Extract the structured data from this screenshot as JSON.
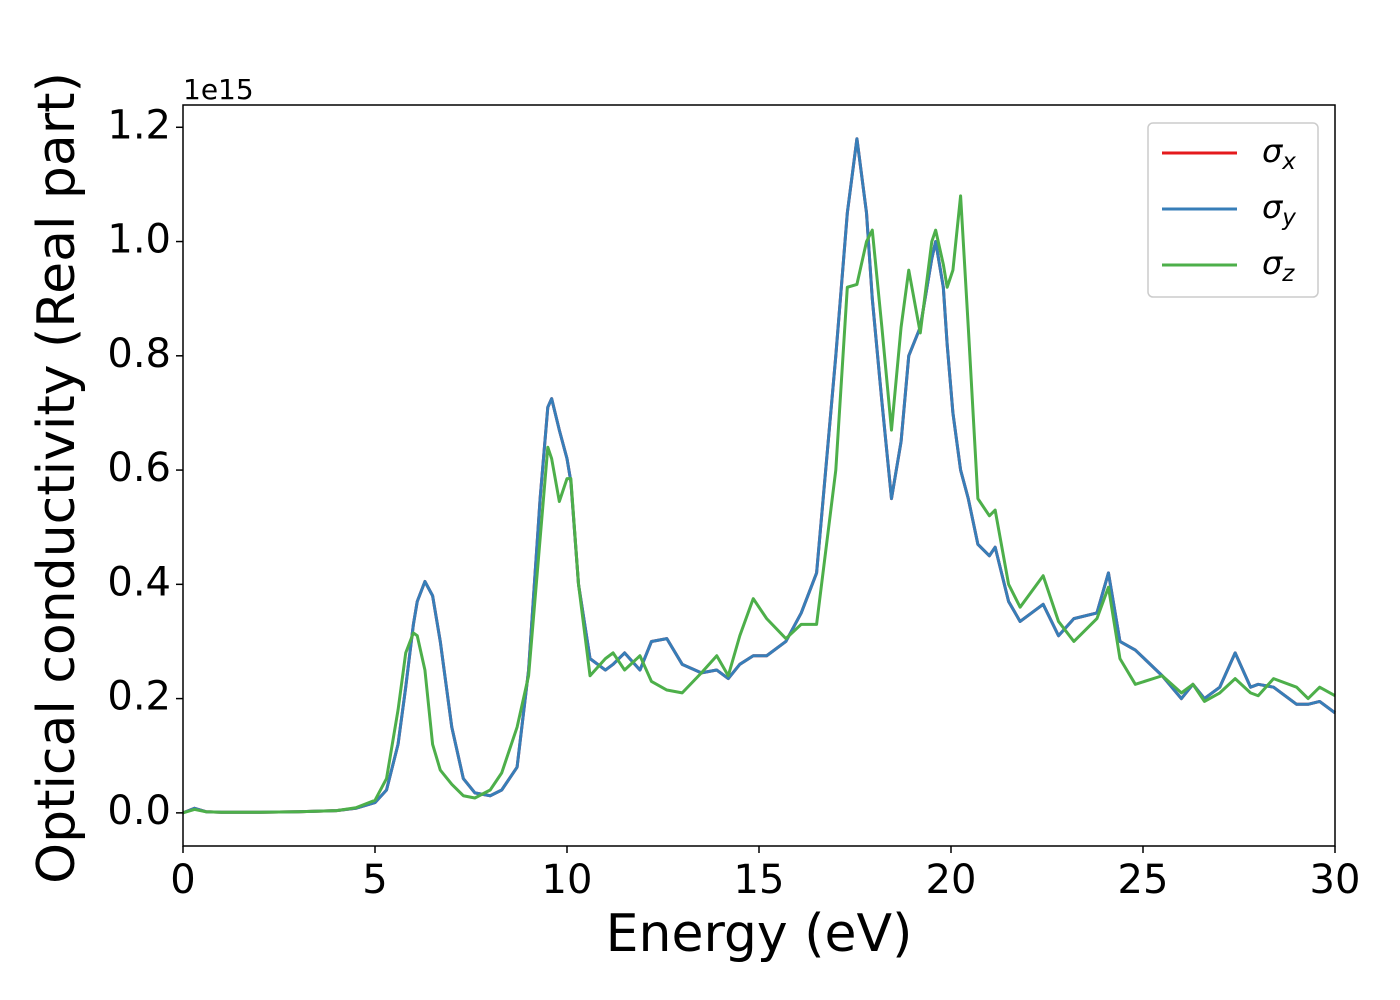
{
  "chart_data": {
    "type": "line",
    "xlabel": "Energy (eV)",
    "ylabel": "Optical conductivity (Real part)",
    "offset_label": "1e15",
    "legend": "upper right",
    "xlim": [
      0,
      30
    ],
    "xticks": [
      0,
      5,
      10,
      15,
      20,
      25,
      30
    ],
    "ylim": [
      -0.058,
      1.239
    ],
    "yticks": [
      {
        "value": 0,
        "label": "0.0"
      },
      0.2,
      0.4,
      0.6,
      0.8,
      {
        "value": 1,
        "label": "1.0"
      },
      1.2
    ],
    "x": [
      0,
      0.3,
      0.6,
      1,
      2,
      3,
      4,
      4.5,
      5,
      5.3,
      5.6,
      5.8,
      6.0,
      6.1,
      6.3,
      6.5,
      6.7,
      7.0,
      7.3,
      7.6,
      8.0,
      8.3,
      8.7,
      9.0,
      9.3,
      9.5,
      9.6,
      9.8,
      10.0,
      10.1,
      10.3,
      10.6,
      11.0,
      11.2,
      11.5,
      11.9,
      12.2,
      12.6,
      13.0,
      13.5,
      13.9,
      14.2,
      14.5,
      14.85,
      15.2,
      15.7,
      16.1,
      16.5,
      17.0,
      17.3,
      17.55,
      17.8,
      17.95,
      18.2,
      18.45,
      18.7,
      18.9,
      19.2,
      19.5,
      19.6,
      19.8,
      19.9,
      20.05,
      20.25,
      20.45,
      20.7,
      21.0,
      21.15,
      21.5,
      21.8,
      22.4,
      22.8,
      23.2,
      23.8,
      24.1,
      24.4,
      24.8,
      25.5,
      26.0,
      26.3,
      26.6,
      27.0,
      27.4,
      27.8,
      28.0,
      28.4,
      29.0,
      29.3,
      29.6,
      30.0
    ],
    "series": [
      {
        "name": "σx",
        "color": "#e41a1c",
        "values": [
          0.0,
          0.008,
          0.002,
          0.001,
          0.001,
          0.002,
          0.004,
          0.008,
          0.018,
          0.04,
          0.12,
          0.22,
          0.33,
          0.37,
          0.405,
          0.38,
          0.3,
          0.15,
          0.06,
          0.035,
          0.03,
          0.04,
          0.08,
          0.25,
          0.55,
          0.71,
          0.725,
          0.67,
          0.62,
          0.58,
          0.4,
          0.27,
          0.25,
          0.26,
          0.28,
          0.25,
          0.3,
          0.305,
          0.26,
          0.245,
          0.25,
          0.235,
          0.26,
          0.275,
          0.275,
          0.3,
          0.35,
          0.42,
          0.8,
          1.05,
          1.18,
          1.05,
          0.9,
          0.72,
          0.55,
          0.65,
          0.8,
          0.85,
          0.97,
          1.0,
          0.92,
          0.82,
          0.7,
          0.6,
          0.55,
          0.47,
          0.45,
          0.465,
          0.37,
          0.335,
          0.365,
          0.31,
          0.34,
          0.35,
          0.42,
          0.3,
          0.285,
          0.24,
          0.2,
          0.225,
          0.2,
          0.22,
          0.28,
          0.22,
          0.225,
          0.22,
          0.19,
          0.19,
          0.195,
          0.175
        ]
      },
      {
        "name": "σy",
        "color": "#377eb8",
        "values": [
          0.0,
          0.008,
          0.002,
          0.001,
          0.001,
          0.002,
          0.004,
          0.008,
          0.018,
          0.04,
          0.12,
          0.22,
          0.33,
          0.37,
          0.405,
          0.38,
          0.3,
          0.15,
          0.06,
          0.035,
          0.03,
          0.04,
          0.08,
          0.25,
          0.55,
          0.71,
          0.725,
          0.67,
          0.62,
          0.58,
          0.4,
          0.27,
          0.25,
          0.26,
          0.28,
          0.25,
          0.3,
          0.305,
          0.26,
          0.245,
          0.25,
          0.235,
          0.26,
          0.275,
          0.275,
          0.3,
          0.35,
          0.42,
          0.8,
          1.05,
          1.18,
          1.05,
          0.9,
          0.72,
          0.55,
          0.65,
          0.8,
          0.85,
          0.97,
          1.0,
          0.92,
          0.82,
          0.7,
          0.6,
          0.55,
          0.47,
          0.45,
          0.465,
          0.37,
          0.335,
          0.365,
          0.31,
          0.34,
          0.35,
          0.42,
          0.3,
          0.285,
          0.24,
          0.2,
          0.225,
          0.2,
          0.22,
          0.28,
          0.22,
          0.225,
          0.22,
          0.19,
          0.19,
          0.195,
          0.175
        ]
      },
      {
        "name": "σz",
        "color": "#4daf4a",
        "values": [
          0.0,
          0.006,
          0.002,
          0.001,
          0.001,
          0.002,
          0.004,
          0.009,
          0.022,
          0.06,
          0.18,
          0.28,
          0.315,
          0.31,
          0.25,
          0.12,
          0.075,
          0.05,
          0.03,
          0.026,
          0.04,
          0.07,
          0.15,
          0.24,
          0.48,
          0.64,
          0.62,
          0.545,
          0.585,
          0.585,
          0.4,
          0.24,
          0.27,
          0.28,
          0.25,
          0.275,
          0.23,
          0.215,
          0.21,
          0.245,
          0.275,
          0.24,
          0.31,
          0.375,
          0.34,
          0.305,
          0.33,
          0.33,
          0.6,
          0.92,
          0.925,
          1.0,
          1.02,
          0.85,
          0.67,
          0.85,
          0.95,
          0.84,
          1.0,
          1.02,
          0.96,
          0.92,
          0.95,
          1.08,
          0.85,
          0.55,
          0.52,
          0.53,
          0.4,
          0.36,
          0.415,
          0.335,
          0.3,
          0.34,
          0.395,
          0.27,
          0.225,
          0.24,
          0.21,
          0.225,
          0.195,
          0.21,
          0.235,
          0.21,
          0.205,
          0.235,
          0.22,
          0.2,
          0.22,
          0.205
        ]
      }
    ]
  }
}
